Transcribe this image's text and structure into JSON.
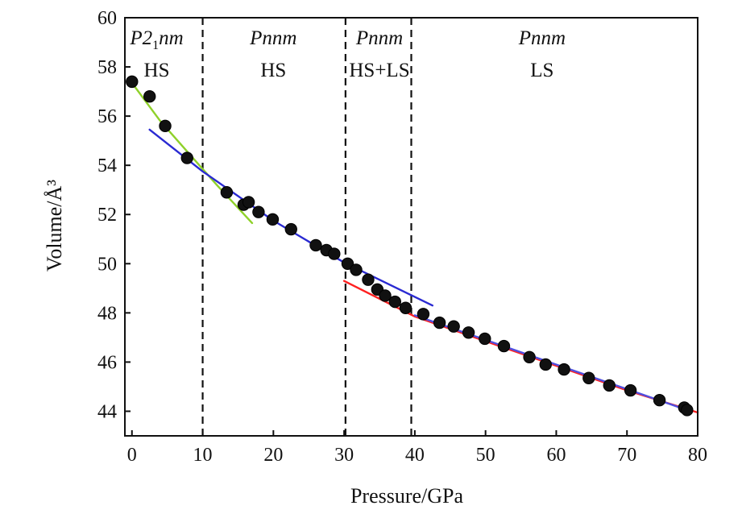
{
  "chart_data": {
    "type": "scatter",
    "title": "",
    "xlabel": "Pressure/GPa",
    "ylabel": "Volume/Å³",
    "xlim": [
      -1,
      80
    ],
    "ylim": [
      43,
      60
    ],
    "xticks": [
      0,
      10,
      20,
      30,
      40,
      50,
      60,
      70,
      80
    ],
    "yticks": [
      44,
      46,
      48,
      50,
      52,
      54,
      56,
      58,
      60
    ],
    "x_tick_labels": [
      "0",
      "10",
      "20",
      "30",
      "40",
      "50",
      "60",
      "70",
      "80"
    ],
    "y_tick_labels": [
      "44",
      "46",
      "48",
      "50",
      "52",
      "54",
      "56",
      "58",
      "60"
    ],
    "grid": false,
    "phase_boundaries": [
      10,
      30.2,
      39.5
    ],
    "phase_regions": [
      {
        "space_group": "P2",
        "subscript": "1",
        "suffix": "nm",
        "state": "HS",
        "x_center": 3.5
      },
      {
        "space_group": "Pnnm",
        "subscript": "",
        "suffix": "",
        "state": "HS",
        "x_center": 20
      },
      {
        "space_group": "Pnnm",
        "subscript": "",
        "suffix": "",
        "state": "HS+LS",
        "x_center": 35
      },
      {
        "space_group": "Pnnm",
        "subscript": "",
        "suffix": "",
        "state": "LS",
        "x_center": 58
      }
    ],
    "points": {
      "x": [
        0.0,
        2.5,
        4.7,
        7.8,
        13.4,
        15.8,
        16.5,
        17.9,
        19.9,
        22.5,
        26.0,
        27.5,
        28.6,
        30.5,
        31.7,
        33.4,
        34.7,
        35.8,
        37.2,
        38.7,
        41.2,
        43.5,
        45.5,
        47.6,
        49.9,
        52.6,
        56.2,
        58.5,
        61.1,
        64.6,
        67.5,
        70.5,
        74.6,
        78.1,
        78.5
      ],
      "y": [
        57.4,
        56.8,
        55.6,
        54.3,
        52.9,
        52.4,
        52.5,
        52.1,
        51.8,
        51.4,
        50.75,
        50.55,
        50.4,
        50.0,
        49.75,
        49.35,
        48.95,
        48.7,
        48.45,
        48.2,
        47.95,
        47.6,
        47.45,
        47.2,
        46.95,
        46.65,
        46.2,
        45.9,
        45.7,
        45.35,
        45.05,
        44.85,
        44.45,
        44.15,
        44.05
      ],
      "color": "#111111"
    },
    "series": [
      {
        "name": "P21nm HS fit",
        "color": "#8fd12a",
        "x": [
          0,
          4,
          8,
          12,
          17
        ],
        "y": [
          57.35,
          55.8,
          54.5,
          53.2,
          51.65
        ]
      },
      {
        "name": "Pnnm HS fit",
        "color": "#2a2ad2",
        "x": [
          2.5,
          10,
          20,
          30,
          42.5
        ],
        "y": [
          55.45,
          53.75,
          51.75,
          50.05,
          48.3
        ]
      },
      {
        "name": "Pnnm LS fit",
        "color": "#ff2020",
        "x": [
          30,
          40,
          50,
          60,
          70,
          80
        ],
        "y": [
          49.3,
          47.85,
          46.85,
          45.85,
          44.85,
          43.95
        ]
      },
      {
        "name": "Pnnm LS fit (overlay)",
        "color": "#5050e0",
        "x": [
          40,
          50,
          60,
          70,
          79
        ],
        "y": [
          47.9,
          46.9,
          45.9,
          44.9,
          44.0
        ]
      }
    ]
  }
}
